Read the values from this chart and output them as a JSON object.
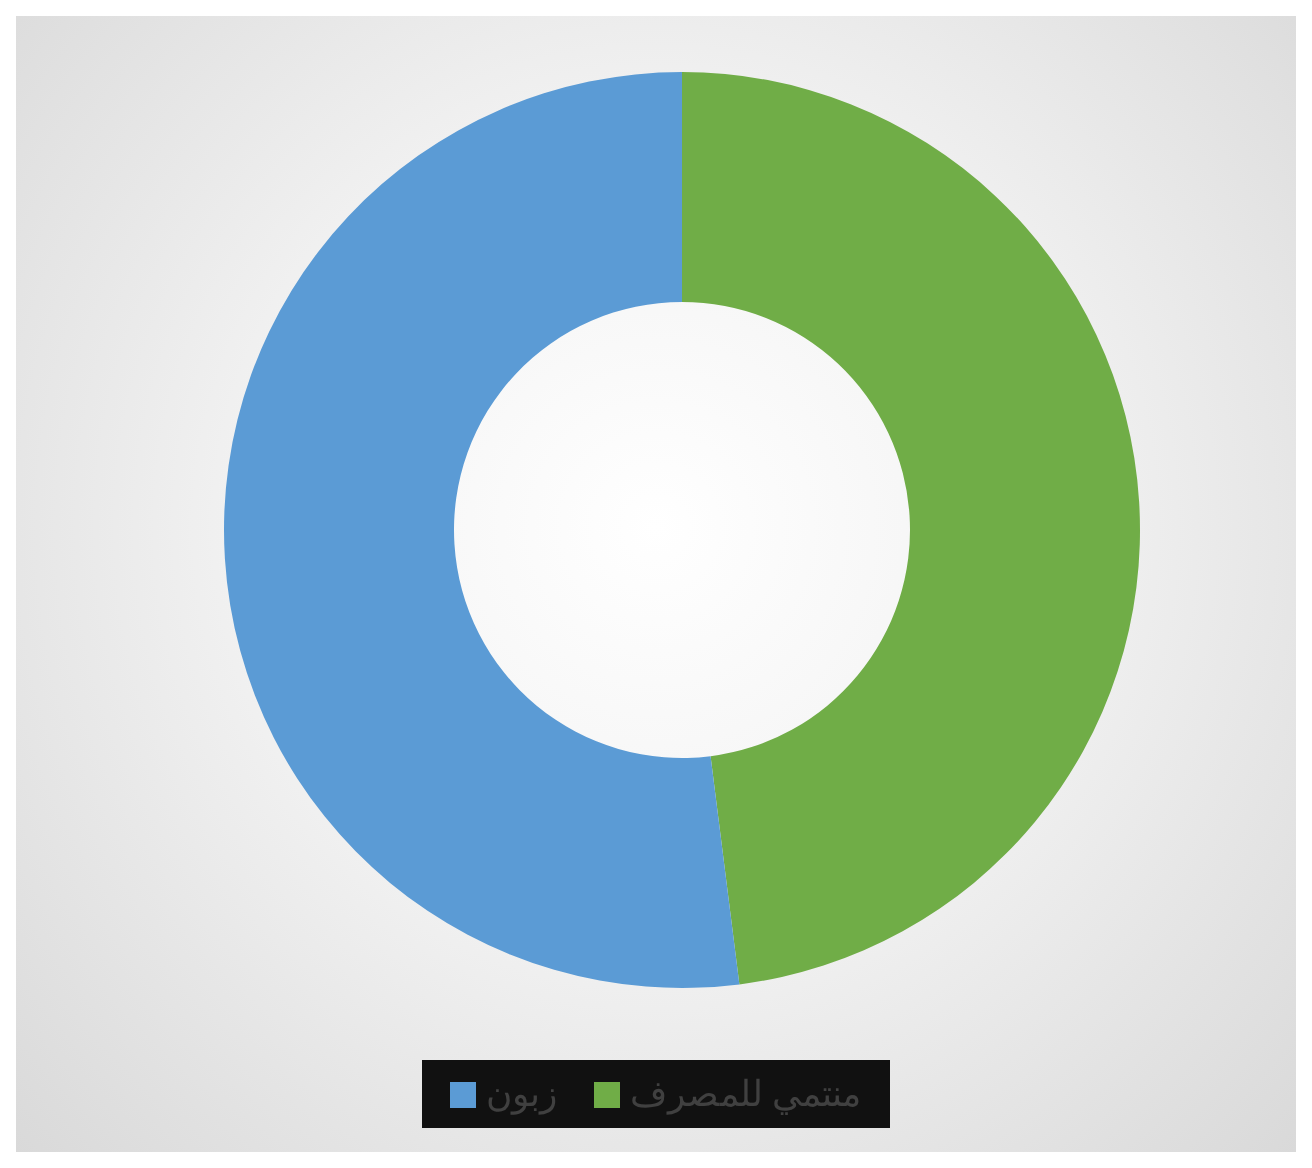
{
  "chart_data": {
    "type": "donut",
    "categories": [
      "منتمي للمصرف",
      "زبون"
    ],
    "values": [
      48,
      52
    ],
    "colors": [
      "#70ad47",
      "#5b9bd5"
    ],
    "legend": "bottom"
  }
}
